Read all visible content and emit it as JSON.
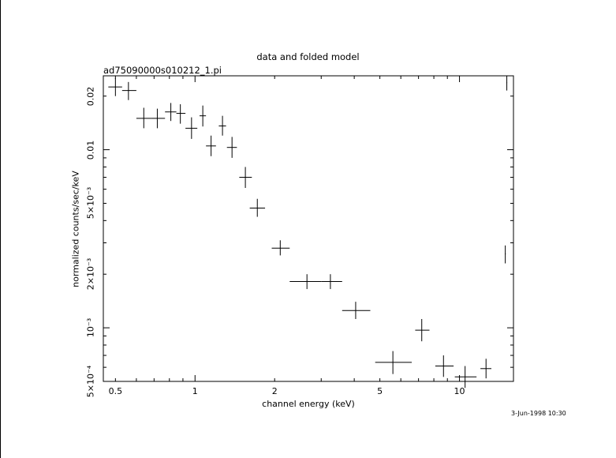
{
  "chart_data": {
    "type": "scatter",
    "title": "data and folded model",
    "subtitle": "ad75090000s010212_1.pi",
    "xlabel": "channel energy (keV)",
    "ylabel": "normalized counts/sec/keV",
    "xscale": "log",
    "yscale": "log",
    "xlim": [
      0.45,
      16
    ],
    "ylim": [
      0.0005,
      0.026
    ],
    "grid": false,
    "x_ticks": [
      {
        "value": 0.5,
        "label": "0.5"
      },
      {
        "value": 1,
        "label": "1"
      },
      {
        "value": 2,
        "label": "2"
      },
      {
        "value": 5,
        "label": "5"
      },
      {
        "value": 10,
        "label": "10"
      }
    ],
    "y_ticks": [
      {
        "value": 0.0005,
        "label": "5×10⁻⁴"
      },
      {
        "value": 0.001,
        "label": "10⁻³"
      },
      {
        "value": 0.002,
        "label": "2×10⁻³"
      },
      {
        "value": 0.005,
        "label": "5×10⁻³"
      },
      {
        "value": 0.01,
        "label": "0.01"
      },
      {
        "value": 0.02,
        "label": "0.02"
      }
    ],
    "points": [
      {
        "x": 0.5,
        "xlo": 0.47,
        "xhi": 0.53,
        "y": 0.0225,
        "ylo": 0.02,
        "yhi": 0.0253
      },
      {
        "x": 0.56,
        "xlo": 0.53,
        "xhi": 0.6,
        "y": 0.0215,
        "ylo": 0.019,
        "yhi": 0.024
      },
      {
        "x": 0.64,
        "xlo": 0.6,
        "xhi": 0.68,
        "y": 0.015,
        "ylo": 0.0132,
        "yhi": 0.0172
      },
      {
        "x": 0.72,
        "xlo": 0.68,
        "xhi": 0.77,
        "y": 0.015,
        "ylo": 0.0132,
        "yhi": 0.017
      },
      {
        "x": 0.81,
        "xlo": 0.77,
        "xhi": 0.85,
        "y": 0.0163,
        "ylo": 0.0145,
        "yhi": 0.0183
      },
      {
        "x": 0.88,
        "xlo": 0.85,
        "xhi": 0.92,
        "y": 0.016,
        "ylo": 0.014,
        "yhi": 0.018
      },
      {
        "x": 0.97,
        "xlo": 0.92,
        "xhi": 1.02,
        "y": 0.0132,
        "ylo": 0.0115,
        "yhi": 0.0152
      },
      {
        "x": 1.07,
        "xlo": 1.04,
        "xhi": 1.1,
        "y": 0.0155,
        "ylo": 0.0135,
        "yhi": 0.0177
      },
      {
        "x": 1.15,
        "xlo": 1.1,
        "xhi": 1.2,
        "y": 0.0105,
        "ylo": 0.0092,
        "yhi": 0.012
      },
      {
        "x": 1.27,
        "xlo": 1.23,
        "xhi": 1.31,
        "y": 0.0136,
        "ylo": 0.012,
        "yhi": 0.0155
      },
      {
        "x": 1.38,
        "xlo": 1.32,
        "xhi": 1.44,
        "y": 0.0103,
        "ylo": 0.009,
        "yhi": 0.0118
      },
      {
        "x": 1.55,
        "xlo": 1.47,
        "xhi": 1.64,
        "y": 0.007,
        "ylo": 0.0061,
        "yhi": 0.008
      },
      {
        "x": 1.72,
        "xlo": 1.61,
        "xhi": 1.84,
        "y": 0.0047,
        "ylo": 0.0042,
        "yhi": 0.0053
      },
      {
        "x": 2.1,
        "xlo": 1.95,
        "xhi": 2.28,
        "y": 0.0028,
        "ylo": 0.00255,
        "yhi": 0.0031
      },
      {
        "x": 2.65,
        "xlo": 2.28,
        "xhi": 3.0,
        "y": 0.00182,
        "ylo": 0.00165,
        "yhi": 0.002
      },
      {
        "x": 3.25,
        "xlo": 3.0,
        "xhi": 3.6,
        "y": 0.00182,
        "ylo": 0.00165,
        "yhi": 0.002
      },
      {
        "x": 4.05,
        "xlo": 3.6,
        "xhi": 4.6,
        "y": 0.00125,
        "ylo": 0.00112,
        "yhi": 0.0014
      },
      {
        "x": 5.6,
        "xlo": 4.8,
        "xhi": 6.6,
        "y": 0.00064,
        "ylo": 0.00055,
        "yhi": 0.00074
      },
      {
        "x": 7.2,
        "xlo": 6.8,
        "xhi": 7.7,
        "y": 0.00097,
        "ylo": 0.00084,
        "yhi": 0.00112
      },
      {
        "x": 8.7,
        "xlo": 8.1,
        "xhi": 9.5,
        "y": 0.00061,
        "ylo": 0.00053,
        "yhi": 0.0007
      },
      {
        "x": 10.5,
        "xlo": 9.6,
        "xhi": 11.6,
        "y": 0.00053,
        "ylo": 0.00046,
        "yhi": 0.00061
      },
      {
        "x": 12.6,
        "xlo": 12.0,
        "xhi": 13.2,
        "y": 0.00059,
        "ylo": 0.00052,
        "yhi": 0.00067
      },
      {
        "x": 14.9,
        "xlo": 14.85,
        "xhi": 14.95,
        "y": 0.0026,
        "ylo": 0.0023,
        "yhi": 0.0029
      },
      {
        "x": 15.1,
        "xlo": 15.05,
        "xhi": 15.15,
        "y": 0.0238,
        "ylo": 0.0215,
        "yhi": 0.026
      }
    ]
  },
  "timestamp": "3-Jun-1998 10:30"
}
